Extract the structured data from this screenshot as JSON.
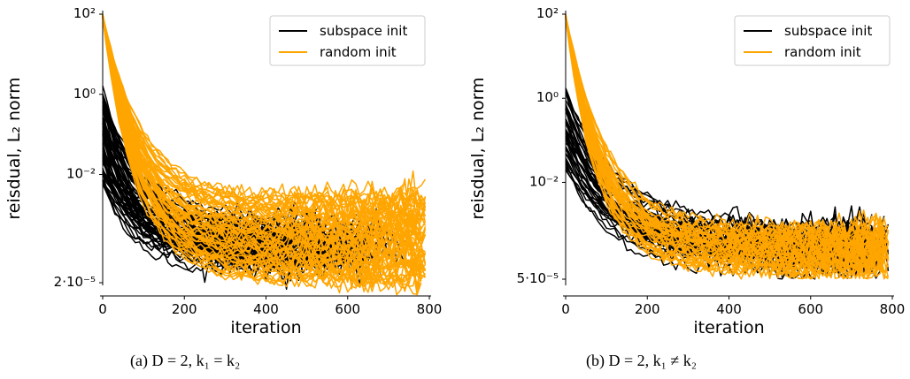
{
  "chart_data": [
    {
      "type": "line",
      "caption": "(a) D = 2, k₁ = k₂",
      "xlabel": "iteration",
      "ylabel": "reisdual, L₂ norm",
      "xlim": [
        0,
        800
      ],
      "ylim": [
        1e-05,
        100
      ],
      "yscale": "log",
      "xticks": [
        0,
        200,
        400,
        600,
        800
      ],
      "yticks": [
        {
          "value": 100,
          "label": "10²"
        },
        {
          "value": 1,
          "label": "10⁰"
        },
        {
          "value": 0.01,
          "label": "10⁻²"
        },
        {
          "value": 2e-05,
          "label": "2·10⁻⁵"
        }
      ],
      "legend": {
        "position": "top-right"
      },
      "series": [
        {
          "name": "subspace init",
          "color": "#000000",
          "count": 60,
          "start_range": [
            0.006,
            1.2
          ],
          "end_range": [
            2e-05,
            0.0005
          ],
          "end_x_range": [
            400,
            800
          ]
        },
        {
          "name": "random init",
          "color": "#FFA500",
          "count": 60,
          "start_range": [
            80,
            100
          ],
          "end_range": [
            2e-05,
            0.003
          ],
          "end_x_range": [
            780,
            800
          ]
        }
      ]
    },
    {
      "type": "line",
      "caption": "(b) D = 2, k₁ ≠ k₂",
      "xlabel": "iteration",
      "ylabel": "reisdual, L₂ norm",
      "xlim": [
        0,
        800
      ],
      "ylim": [
        5e-05,
        100
      ],
      "yscale": "log",
      "xticks": [
        0,
        200,
        400,
        600,
        800
      ],
      "yticks": [
        {
          "value": 100,
          "label": "10²"
        },
        {
          "value": 1,
          "label": "10⁰"
        },
        {
          "value": 0.01,
          "label": "10⁻²"
        },
        {
          "value": 5e-05,
          "label": "5·10⁻⁵"
        }
      ],
      "legend": {
        "position": "top-right"
      },
      "series": [
        {
          "name": "subspace init",
          "color": "#000000",
          "count": 40,
          "start_range": [
            0.02,
            1.6
          ],
          "end_range": [
            6e-05,
            0.0006
          ],
          "end_x_range": [
            750,
            800
          ]
        },
        {
          "name": "random init",
          "color": "#FFA500",
          "count": 40,
          "start_range": [
            80,
            100
          ],
          "end_range": [
            7e-05,
            0.0008
          ],
          "end_x_range": [
            780,
            800
          ]
        }
      ]
    }
  ]
}
